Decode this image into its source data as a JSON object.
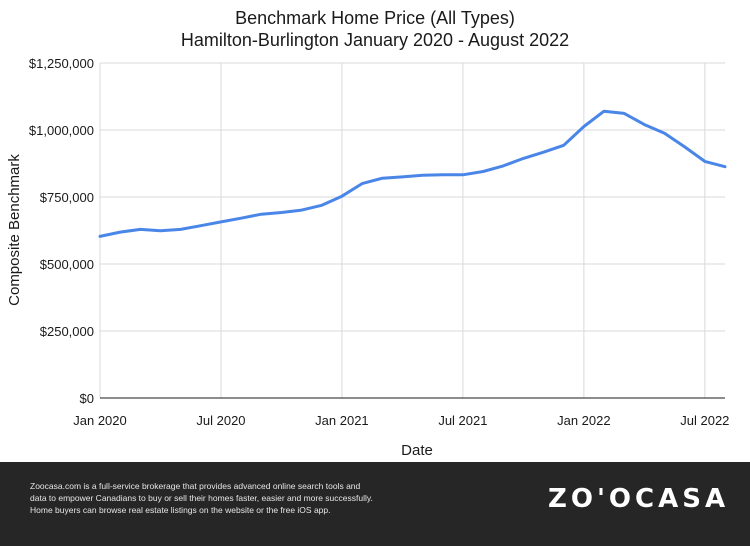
{
  "chart_data": {
    "type": "line",
    "title": "Benchmark Home Price (All Types)",
    "subtitle": "Hamilton-Burlington January 2020 - August 2022",
    "xlabel": "Date",
    "ylabel": "Composite Benchmark",
    "ylim": [
      0,
      1250000
    ],
    "y_ticks": [
      0,
      250000,
      500000,
      750000,
      1000000,
      1250000
    ],
    "y_tick_labels": [
      "$0",
      "$250,000",
      "$500,000",
      "$750,000",
      "$1,000,000",
      "$1,250,000"
    ],
    "x_tick_labels": [
      "Jan 2020",
      "Jul 2020",
      "Jan 2021",
      "Jul 2021",
      "Jan 2022",
      "Jul 2022"
    ],
    "x_tick_dates": [
      "2020-01",
      "2020-07",
      "2021-01",
      "2021-07",
      "2022-01",
      "2022-07"
    ],
    "grid": true,
    "series": [
      {
        "color": "#4a86e8",
        "x": [
          "2020-01",
          "2020-02",
          "2020-03",
          "2020-04",
          "2020-05",
          "2020-06",
          "2020-07",
          "2020-08",
          "2020-09",
          "2020-10",
          "2020-11",
          "2020-12",
          "2021-01",
          "2021-02",
          "2021-03",
          "2021-04",
          "2021-05",
          "2021-06",
          "2021-07",
          "2021-08",
          "2021-09",
          "2021-10",
          "2021-11",
          "2021-12",
          "2022-01",
          "2022-02",
          "2022-03",
          "2022-04",
          "2022-05",
          "2022-06",
          "2022-07",
          "2022-08"
        ],
        "values": [
          603000,
          619000,
          629000,
          624000,
          629000,
          643000,
          657000,
          671000,
          686000,
          692000,
          701000,
          719000,
          753000,
          800000,
          820000,
          825000,
          831000,
          833000,
          833000,
          845000,
          866000,
          894000,
          917000,
          943000,
          1013000,
          1070000,
          1062000,
          1020000,
          988000,
          937000,
          883000,
          863000
        ]
      }
    ]
  },
  "footer": {
    "text_lines": [
      "Zoocasa.com is a full-service brokerage that provides advanced online search tools and",
      "data to empower Canadians to buy or sell their homes faster, easier and more successfully.",
      "Home buyers can browse real estate listings on the website or the free iOS app."
    ],
    "brand": "ZO'OCASA"
  }
}
